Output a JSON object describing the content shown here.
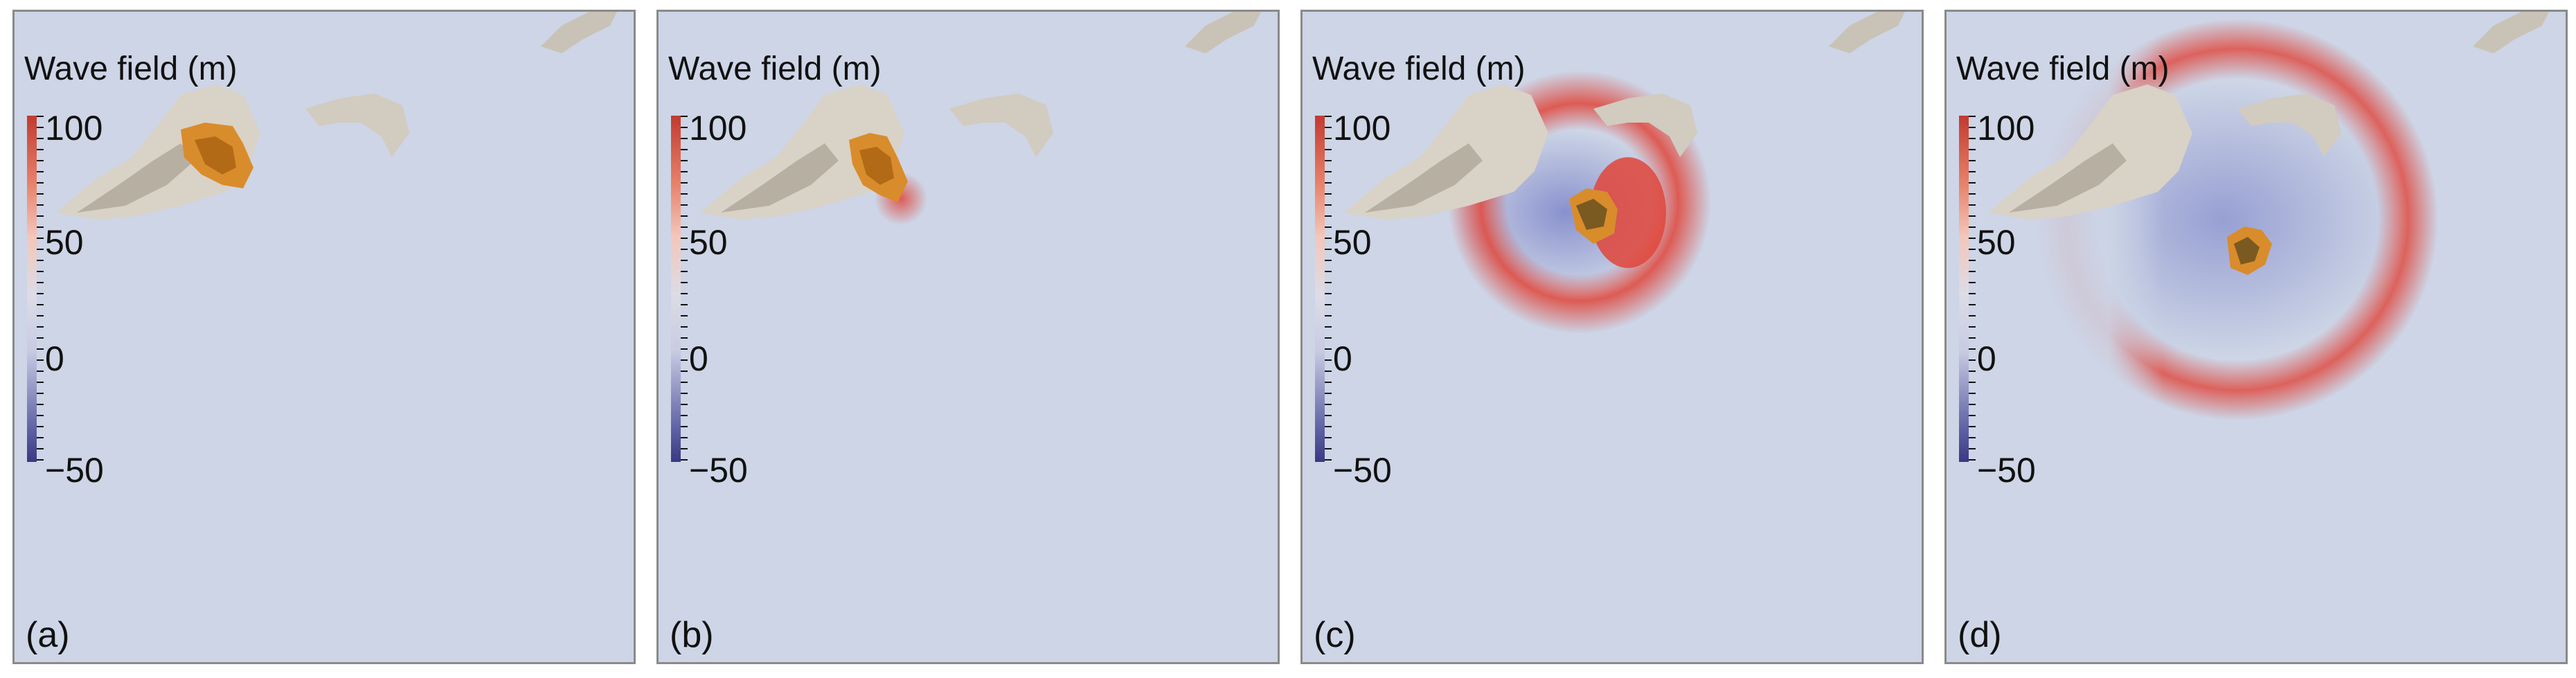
{
  "figure": {
    "colorbar_title": "Wave field (m)",
    "colorbar_ticks": [
      "100",
      "50",
      "0",
      "−50"
    ],
    "colors": {
      "water": "#cdd5e6",
      "island": "#d9d2c6",
      "island_shade": "#b8afa3",
      "landslide": "#d98c2b",
      "wave_positive": "#e0453a",
      "wave_negative": "#6c74c4"
    },
    "panels": [
      {
        "label": "(a)",
        "state": "initial-slide"
      },
      {
        "label": "(b)",
        "state": "slide-entering"
      },
      {
        "label": "(c)",
        "state": "wave-forming"
      },
      {
        "label": "(d)",
        "state": "wave-spreading"
      }
    ]
  }
}
